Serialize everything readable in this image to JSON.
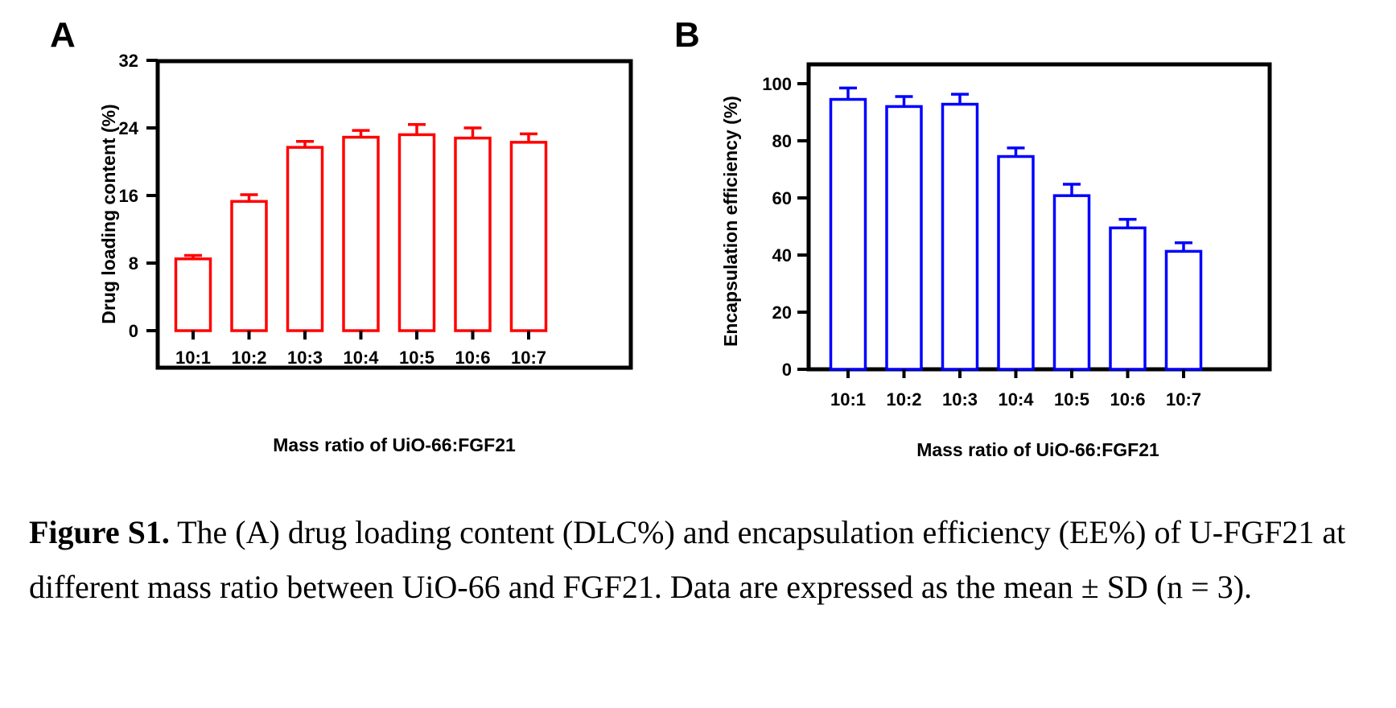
{
  "chart_data": [
    {
      "type": "bar",
      "panel_label": "A",
      "categories": [
        "10:1",
        "10:2",
        "10:3",
        "10:4",
        "10:5",
        "10:6",
        "10:7"
      ],
      "series": [
        {
          "values": [
            8.5,
            15.3,
            21.7,
            22.9,
            23.2,
            22.8,
            22.3
          ],
          "error": [
            0.4,
            0.8,
            0.7,
            0.8,
            1.2,
            1.2,
            1.0
          ],
          "color": "#ff0000"
        }
      ],
      "xlabel": "Mass ratio of UiO-66:FGF21",
      "ylabel": "Drug loading content (%)",
      "ylim": [
        0,
        32
      ],
      "yticks": [
        "0",
        "8",
        "16",
        "24",
        "32"
      ],
      "grid": false
    },
    {
      "type": "bar",
      "panel_label": "B",
      "categories": [
        "10:1",
        "10:2",
        "10:3",
        "10:4",
        "10:5",
        "10:6",
        "10:7"
      ],
      "series": [
        {
          "values": [
            94.5,
            92,
            92.8,
            74.5,
            60.8,
            49.5,
            41.3
          ],
          "error": [
            4,
            3.5,
            3.5,
            3,
            4,
            3,
            3
          ],
          "color": "#0000ff"
        }
      ],
      "xlabel": "Mass ratio of UiO-66:FGF21",
      "ylabel": "Encapsulation efficiency (%)",
      "ylim": [
        0,
        100
      ],
      "yticks": [
        "0",
        "20",
        "40",
        "60",
        "80",
        "100"
      ],
      "grid": false
    }
  ],
  "caption": {
    "label": "Figure S1.",
    "text": " The (A) drug loading content (DLC%) and encapsulation efficiency (EE%) of U-FGF21 at different mass ratio between UiO-66 and FGF21. Data are expressed as the mean ± SD (n = 3)."
  }
}
